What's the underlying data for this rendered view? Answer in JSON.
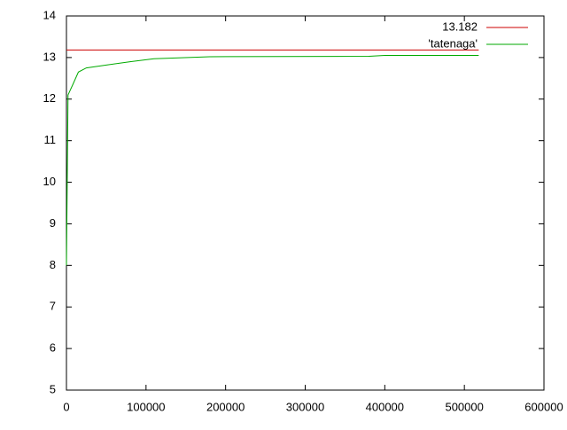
{
  "chart_data": {
    "type": "line",
    "series": [
      {
        "name": "13.182",
        "color": "#cc0000",
        "x": [
          0,
          518000
        ],
        "values": [
          13.182,
          13.182
        ]
      },
      {
        "name": "'tatenaga'",
        "color": "#00aa00",
        "x": [
          0,
          2000,
          8000,
          15000,
          25000,
          50000,
          80000,
          110000,
          180000,
          380000,
          400000,
          518000
        ],
        "values": [
          8.0,
          12.1,
          12.35,
          12.65,
          12.75,
          12.82,
          12.9,
          12.97,
          13.02,
          13.03,
          13.05,
          13.05
        ]
      }
    ],
    "xlim": [
      0,
      600000
    ],
    "xticks": [
      0,
      100000,
      200000,
      300000,
      400000,
      500000,
      600000
    ],
    "ylim": [
      5,
      14
    ],
    "yticks": [
      5,
      6,
      7,
      8,
      9,
      10,
      11,
      12,
      13,
      14
    ],
    "grid": false,
    "legend": "top-right"
  }
}
